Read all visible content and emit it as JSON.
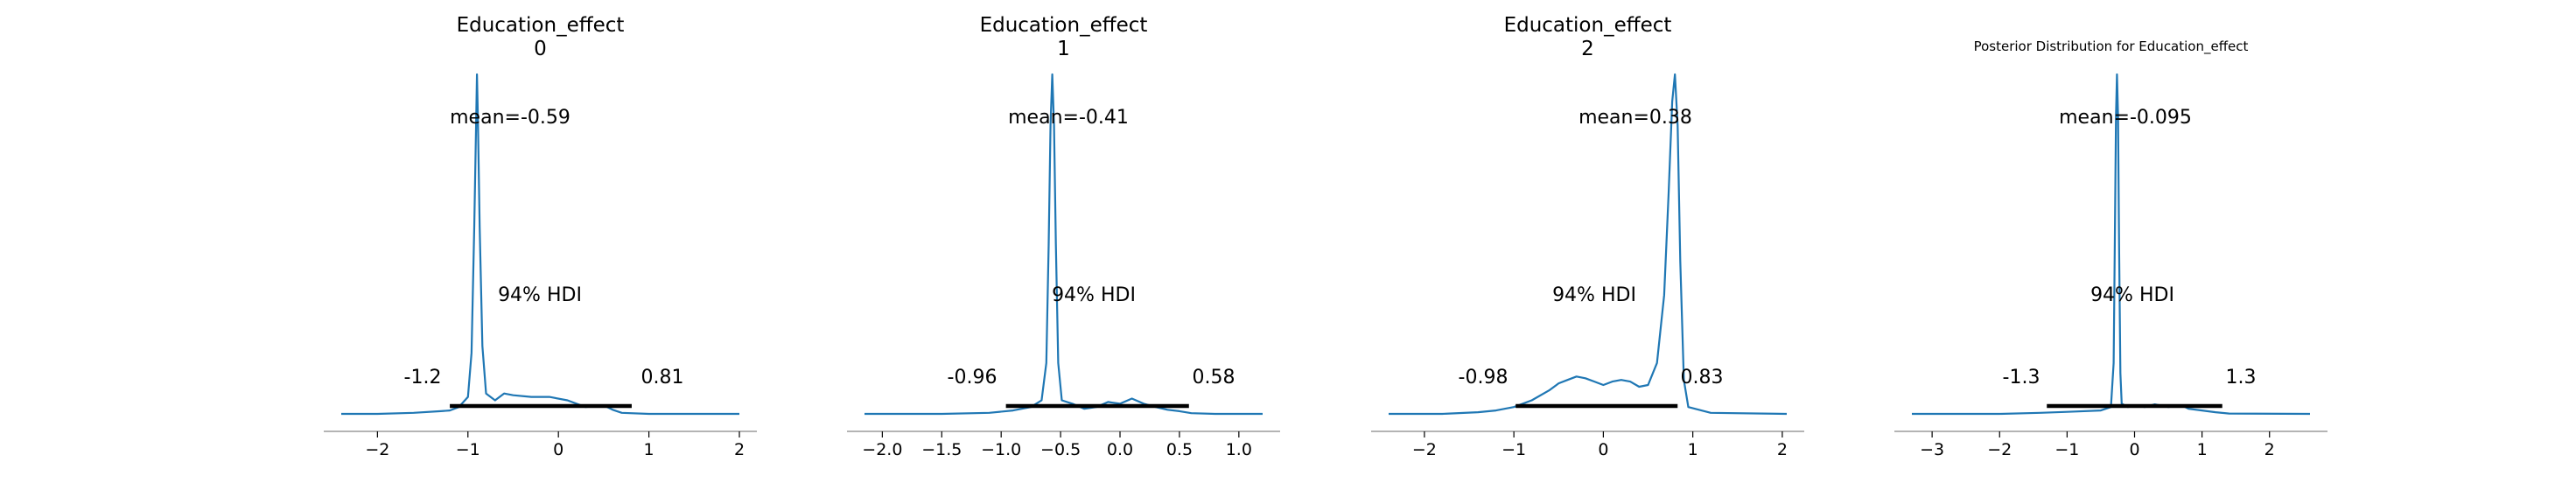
{
  "chart_data": [
    {
      "type": "line",
      "title_lines": [
        "Education_effect",
        "0"
      ],
      "title_style": "large",
      "x": {
        "min": -2.4,
        "max": 2.0,
        "ticks": [
          -2,
          -1,
          0,
          1,
          2
        ],
        "tick_labels": [
          "−2",
          "−1",
          "0",
          "1",
          "2"
        ]
      },
      "y": {
        "max": 1.0
      },
      "density": [
        [
          -2.4,
          0.0
        ],
        [
          -2.0,
          0.0
        ],
        [
          -1.6,
          0.003
        ],
        [
          -1.3,
          0.008
        ],
        [
          -1.2,
          0.01
        ],
        [
          -1.1,
          0.02
        ],
        [
          -1.0,
          0.05
        ],
        [
          -0.96,
          0.18
        ],
        [
          -0.93,
          0.55
        ],
        [
          -0.91,
          0.85
        ],
        [
          -0.9,
          1.0
        ],
        [
          -0.89,
          0.88
        ],
        [
          -0.87,
          0.55
        ],
        [
          -0.84,
          0.2
        ],
        [
          -0.8,
          0.06
        ],
        [
          -0.7,
          0.04
        ],
        [
          -0.6,
          0.06
        ],
        [
          -0.5,
          0.055
        ],
        [
          -0.3,
          0.05
        ],
        [
          -0.1,
          0.05
        ],
        [
          0.1,
          0.04
        ],
        [
          0.3,
          0.02
        ],
        [
          0.5,
          0.025
        ],
        [
          0.6,
          0.012
        ],
        [
          0.7,
          0.003
        ],
        [
          1.0,
          0.0
        ],
        [
          2.0,
          0.0
        ]
      ],
      "mean_label": "mean=-0.59",
      "hdi_label": "94% HDI",
      "hdi": {
        "low": -1.2,
        "high": 0.81,
        "low_label": "-1.2",
        "high_label": "0.81"
      }
    },
    {
      "type": "line",
      "title_lines": [
        "Education_effect",
        "1"
      ],
      "title_style": "large",
      "x": {
        "min": -2.15,
        "max": 1.2,
        "ticks": [
          -2.0,
          -1.5,
          -1.0,
          -0.5,
          0.0,
          0.5,
          1.0
        ],
        "tick_labels": [
          "−2.0",
          "−1.5",
          "−1.0",
          "−0.5",
          "0.0",
          "0.5",
          "1.0"
        ]
      },
      "y": {
        "max": 1.0
      },
      "density": [
        [
          -2.15,
          0.0
        ],
        [
          -1.5,
          0.0
        ],
        [
          -1.1,
          0.003
        ],
        [
          -0.9,
          0.01
        ],
        [
          -0.75,
          0.02
        ],
        [
          -0.66,
          0.04
        ],
        [
          -0.62,
          0.15
        ],
        [
          -0.6,
          0.5
        ],
        [
          -0.585,
          0.85
        ],
        [
          -0.57,
          1.0
        ],
        [
          -0.555,
          0.85
        ],
        [
          -0.54,
          0.5
        ],
        [
          -0.52,
          0.15
        ],
        [
          -0.49,
          0.04
        ],
        [
          -0.4,
          0.03
        ],
        [
          -0.3,
          0.015
        ],
        [
          -0.2,
          0.02
        ],
        [
          -0.1,
          0.035
        ],
        [
          0.0,
          0.03
        ],
        [
          0.1,
          0.045
        ],
        [
          0.2,
          0.03
        ],
        [
          0.3,
          0.02
        ],
        [
          0.4,
          0.012
        ],
        [
          0.5,
          0.008
        ],
        [
          0.6,
          0.002
        ],
        [
          0.8,
          0.0
        ],
        [
          1.2,
          0.0
        ]
      ],
      "mean_label": "mean=-0.41",
      "hdi_label": "94% HDI",
      "hdi": {
        "low": -0.96,
        "high": 0.58,
        "low_label": "-0.96",
        "high_label": "0.58"
      }
    },
    {
      "type": "line",
      "title_lines": [
        "Education_effect",
        "2"
      ],
      "title_style": "large",
      "x": {
        "min": -2.4,
        "max": 2.05,
        "ticks": [
          -2,
          -1,
          0,
          1,
          2
        ],
        "tick_labels": [
          "−2",
          "−1",
          "0",
          "1",
          "2"
        ]
      },
      "y": {
        "max": 1.0
      },
      "density": [
        [
          -2.4,
          0.0
        ],
        [
          -1.8,
          0.0
        ],
        [
          -1.4,
          0.005
        ],
        [
          -1.2,
          0.01
        ],
        [
          -1.0,
          0.02
        ],
        [
          -0.8,
          0.04
        ],
        [
          -0.6,
          0.07
        ],
        [
          -0.5,
          0.09
        ],
        [
          -0.4,
          0.1
        ],
        [
          -0.3,
          0.11
        ],
        [
          -0.2,
          0.105
        ],
        [
          -0.1,
          0.095
        ],
        [
          0.0,
          0.085
        ],
        [
          0.1,
          0.095
        ],
        [
          0.2,
          0.1
        ],
        [
          0.3,
          0.095
        ],
        [
          0.4,
          0.08
        ],
        [
          0.5,
          0.085
        ],
        [
          0.6,
          0.15
        ],
        [
          0.68,
          0.35
        ],
        [
          0.73,
          0.65
        ],
        [
          0.77,
          0.92
        ],
        [
          0.8,
          1.0
        ],
        [
          0.83,
          0.85
        ],
        [
          0.86,
          0.45
        ],
        [
          0.9,
          0.1
        ],
        [
          0.95,
          0.02
        ],
        [
          1.2,
          0.003
        ],
        [
          2.05,
          0.0
        ]
      ],
      "mean_label": "mean=0.38",
      "hdi_label": "94% HDI",
      "hdi": {
        "low": -0.98,
        "high": 0.83,
        "low_label": "-0.98",
        "high_label": "0.83"
      }
    },
    {
      "type": "line",
      "title_lines": [
        "Posterior Distribution for Education_effect"
      ],
      "title_style": "small",
      "x": {
        "min": -3.3,
        "max": 2.6,
        "ticks": [
          -3,
          -2,
          -1,
          0,
          1,
          2
        ],
        "tick_labels": [
          "−3",
          "−2",
          "−1",
          "0",
          "1",
          "2"
        ]
      },
      "y": {
        "max": 1.0
      },
      "density": [
        [
          -3.3,
          0.0
        ],
        [
          -2.0,
          0.0
        ],
        [
          -1.4,
          0.003
        ],
        [
          -1.0,
          0.006
        ],
        [
          -0.5,
          0.01
        ],
        [
          -0.35,
          0.02
        ],
        [
          -0.31,
          0.15
        ],
        [
          -0.29,
          0.55
        ],
        [
          -0.275,
          0.88
        ],
        [
          -0.26,
          1.0
        ],
        [
          -0.245,
          0.88
        ],
        [
          -0.23,
          0.5
        ],
        [
          -0.21,
          0.12
        ],
        [
          -0.19,
          0.03
        ],
        [
          -0.1,
          0.02
        ],
        [
          0.0,
          0.025
        ],
        [
          0.15,
          0.02
        ],
        [
          0.3,
          0.028
        ],
        [
          0.5,
          0.02
        ],
        [
          0.7,
          0.025
        ],
        [
          0.8,
          0.015
        ],
        [
          1.0,
          0.01
        ],
        [
          1.2,
          0.005
        ],
        [
          1.4,
          0.001
        ],
        [
          2.6,
          0.0
        ]
      ],
      "mean_label": "mean=-0.095",
      "hdi_label": "94% HDI",
      "hdi": {
        "low": -1.3,
        "high": 1.3,
        "low_label": "-1.3",
        "high_label": "1.3"
      }
    }
  ],
  "style": {
    "line_color": "#1f77b4",
    "hdi_color": "#000000",
    "axis_color": "#888888"
  }
}
